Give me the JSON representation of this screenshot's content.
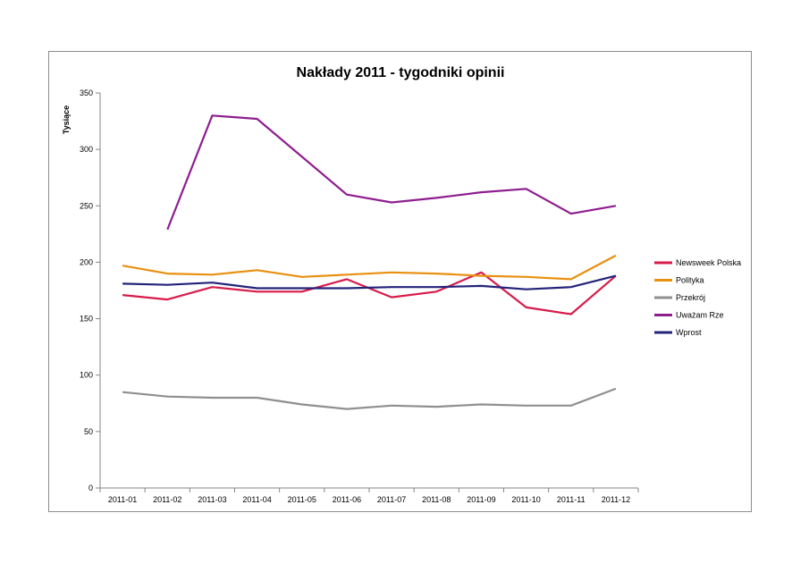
{
  "chart_data": {
    "type": "line",
    "title": "Nakłady 2011 - tygodniki opinii",
    "xlabel": "",
    "ylabel": "Tysiące",
    "ylim": [
      0,
      350
    ],
    "yticks": [
      0,
      50,
      100,
      150,
      200,
      250,
      300,
      350
    ],
    "grid": false,
    "legend_position": "right",
    "categories": [
      "2011-01",
      "2011-02",
      "2011-03",
      "2011-04",
      "2011-05",
      "2011-06",
      "2011-07",
      "2011-08",
      "2011-09",
      "2011-10",
      "2011-11",
      "2011-12"
    ],
    "series": [
      {
        "name": "Newsweek Polska",
        "color": "#d81b4a",
        "values": [
          171,
          167,
          178,
          174,
          174,
          185,
          169,
          174,
          191,
          160,
          154,
          188
        ]
      },
      {
        "name": "Polityka",
        "color": "#e8900f",
        "values": [
          197,
          190,
          189,
          193,
          187,
          189,
          191,
          190,
          188,
          187,
          185,
          206
        ]
      },
      {
        "name": "Przekrój",
        "color": "#8f8f8f",
        "values": [
          85,
          81,
          80,
          80,
          74,
          70,
          73,
          72,
          74,
          73,
          73,
          88
        ]
      },
      {
        "name": "Uważam Rze",
        "color": "#8e1e8e",
        "values": [
          null,
          229,
          330,
          327,
          null,
          260,
          253,
          257,
          262,
          265,
          243,
          250
        ]
      },
      {
        "name": "Wprost",
        "color": "#23237a",
        "values": [
          181,
          180,
          182,
          177,
          177,
          177,
          178,
          178,
          179,
          176,
          178,
          188
        ]
      }
    ]
  }
}
